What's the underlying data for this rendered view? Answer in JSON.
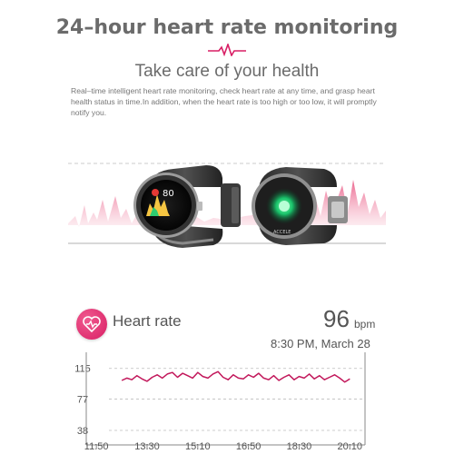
{
  "header": {
    "title": "24–hour heart rate monitoring",
    "subtitle": "Take care of your health",
    "description": "Real–time intelligent heart rate monitoring, check heart rate at any time, and grasp heart health status in time.In addition, when the heart rate is too high or too low, it will promptly notify you."
  },
  "watch_face": {
    "display_value": "80",
    "button_label": "ACCELE"
  },
  "heart_rate": {
    "label": "Heart rate",
    "value": "96",
    "unit": "bpm",
    "timestamp": "8:30 PM, March 28"
  },
  "colors": {
    "accent": "#d81e64",
    "line": "#c2185b",
    "text": "#555555"
  },
  "chart_data": {
    "type": "line",
    "title": "",
    "xlabel": "",
    "ylabel": "",
    "ylim": [
      20,
      135
    ],
    "xlim": [
      "11:30",
      "20:40"
    ],
    "y_ticks": [
      115,
      77,
      38
    ],
    "x_ticks": [
      "11:50",
      "13:30",
      "15:10",
      "16:50",
      "18:30",
      "20:10"
    ],
    "series": [
      {
        "x": [
          "12:40",
          "12:50",
          "13:00",
          "13:10",
          "13:20",
          "13:30",
          "13:40",
          "13:50",
          "14:00",
          "14:10",
          "14:20",
          "14:30",
          "14:40",
          "14:50",
          "15:00",
          "15:10",
          "15:20",
          "15:30",
          "15:40",
          "15:50",
          "16:00",
          "16:10",
          "16:20",
          "16:30",
          "16:40",
          "16:50",
          "17:00",
          "17:10",
          "17:20",
          "17:30",
          "17:40",
          "17:50",
          "18:00",
          "18:10",
          "18:20",
          "18:30",
          "18:40",
          "18:50",
          "19:00",
          "19:10",
          "19:20",
          "19:30",
          "19:40",
          "19:50",
          "20:00",
          "20:10"
        ],
        "values": [
          100,
          103,
          101,
          106,
          102,
          99,
          104,
          107,
          103,
          108,
          110,
          104,
          109,
          106,
          103,
          110,
          105,
          103,
          108,
          111,
          104,
          101,
          107,
          103,
          102,
          107,
          104,
          109,
          103,
          101,
          106,
          100,
          104,
          107,
          101,
          105,
          103,
          108,
          102,
          106,
          101,
          104,
          107,
          103,
          98,
          102
        ]
      }
    ],
    "grid": true
  }
}
